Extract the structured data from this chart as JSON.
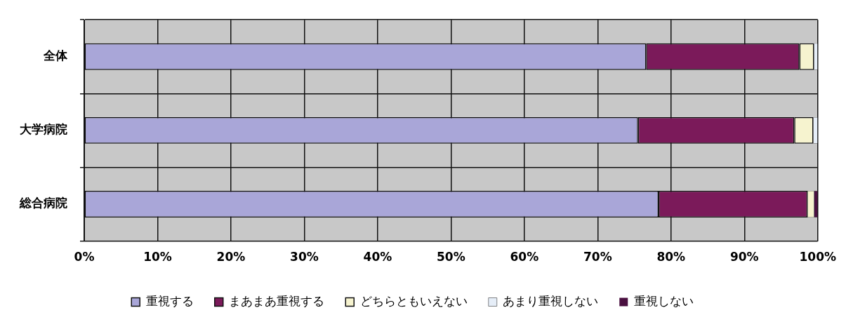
{
  "chart_data": {
    "type": "bar",
    "orientation": "horizontal",
    "stacked": true,
    "categories": [
      "全体",
      "大学病院",
      "総合病院"
    ],
    "series": [
      {
        "name": "重視する",
        "color": "#a9a6d8",
        "values": [
          76.6,
          75.5,
          78.3
        ]
      },
      {
        "name": "まあまあ重視する",
        "color": "#7b1a5a",
        "values": [
          20.9,
          21.3,
          20.3
        ]
      },
      {
        "name": "どちらともいえない",
        "color": "#f6f3cf",
        "values": [
          2.0,
          2.6,
          0.9
        ]
      },
      {
        "name": "あまり重視しない",
        "color": "#e6eef8",
        "values": [
          0.5,
          0.6,
          0.0
        ]
      },
      {
        "name": "重視しない",
        "color": "#4a1040",
        "values": [
          0.0,
          0.0,
          0.5
        ]
      }
    ],
    "xlim": [
      0,
      100
    ],
    "xticks": [
      {
        "value": 0,
        "label": "0%"
      },
      {
        "value": 10,
        "label": "10%"
      },
      {
        "value": 20,
        "label": "20%"
      },
      {
        "value": 30,
        "label": "30%"
      },
      {
        "value": 40,
        "label": "40%"
      },
      {
        "value": 50,
        "label": "50%"
      },
      {
        "value": 60,
        "label": "60%"
      },
      {
        "value": 70,
        "label": "70%"
      },
      {
        "value": 80,
        "label": "80%"
      },
      {
        "value": 90,
        "label": "90%"
      },
      {
        "value": 100,
        "label": "100%"
      }
    ],
    "grid": true,
    "legend": "bottom"
  }
}
